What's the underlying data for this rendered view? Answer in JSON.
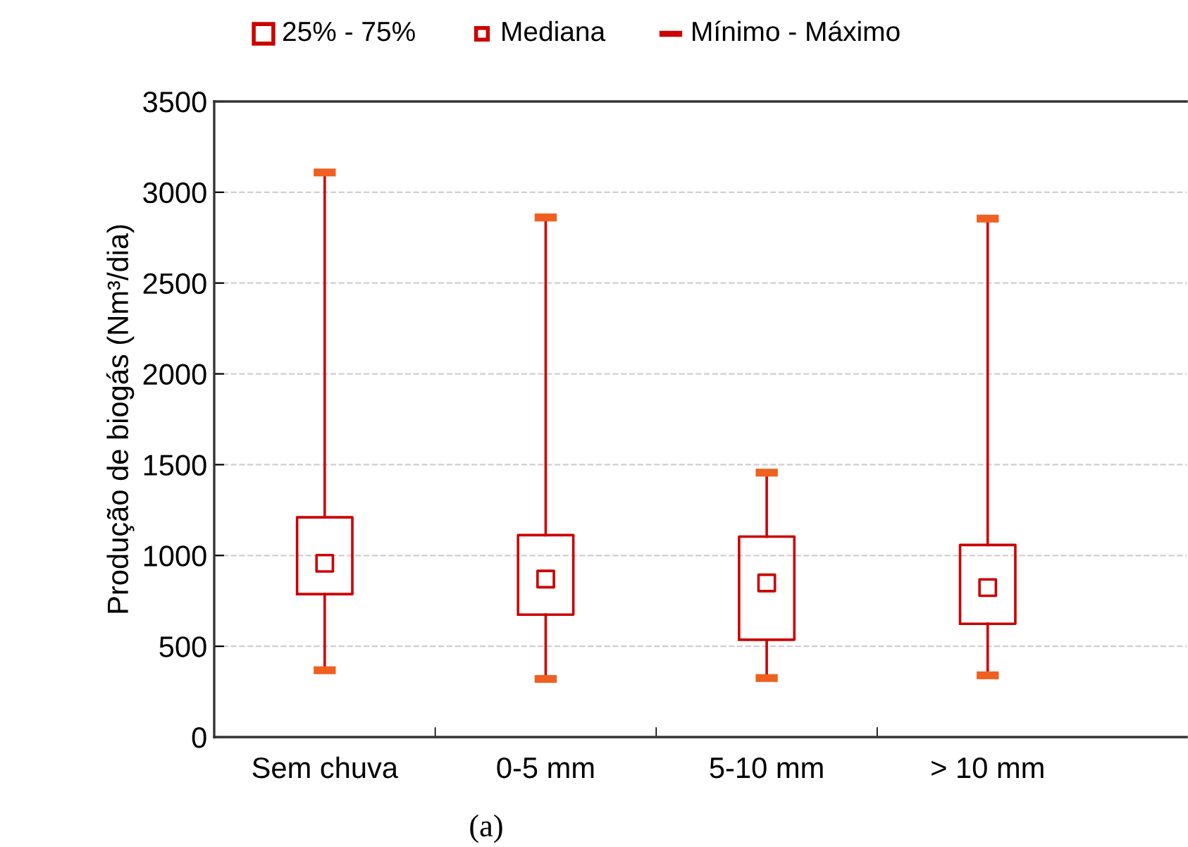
{
  "chart_data": {
    "type": "box",
    "ylabel": "Produção de biogás (Nm³/dia)",
    "categories": [
      "Sem chuva",
      "0-5 mm",
      "5-10 mm",
      "> 10 mm"
    ],
    "boxes": [
      {
        "low": 368,
        "q1": 787,
        "median": 957,
        "q3": 1210,
        "high": 3109
      },
      {
        "low": 320,
        "q1": 674,
        "median": 870,
        "q3": 1112,
        "high": 2861
      },
      {
        "low": 325,
        "q1": 536,
        "median": 849,
        "q3": 1104,
        "high": 1456
      },
      {
        "low": 340,
        "q1": 624,
        "median": 823,
        "q3": 1058,
        "high": 2855
      }
    ],
    "color": "#cc0000",
    "ylim": [
      0,
      3500
    ],
    "yticks": [
      0,
      500,
      1000,
      1500,
      2000,
      2500,
      3000,
      3500
    ],
    "grid": "y",
    "annotations": [
      "25% - 75%",
      "Mediana",
      "Mínimo - Máximo",
      "(a)"
    ]
  }
}
